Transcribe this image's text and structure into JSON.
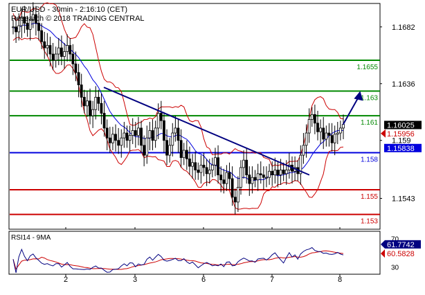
{
  "header": {
    "line1": "EUR/USD - 30min - 2:16:10 (CET)",
    "line2": "Research © 2018 TRADING CENTRAL"
  },
  "colors": {
    "candle": "#000000",
    "bollinger": "#cc0000",
    "moving_average": "#0000dd",
    "trendline": "#000080",
    "resistance": "#008800",
    "pivot": "#0000dd",
    "support": "#cc0000",
    "arrow": "#000080",
    "rsi": "#000080",
    "rsi_ma": "#cc0000",
    "last_price_bg": "#000000",
    "last_price_fg": "#ffffff",
    "prev_price_bg": "#cc0000",
    "ma_label_bg": "#0000dd"
  },
  "chart_data": [
    {
      "type": "candlestick",
      "title": "EUR/USD - 30min - 2:16:10 (CET)",
      "x_tick_labels": [
        "2",
        "3",
        "6",
        "7",
        "8"
      ],
      "y_tick_labels": [
        "1.1682",
        "1.1636",
        "1.159",
        "1.1543"
      ],
      "ylim": [
        1.1518,
        1.1701
      ],
      "grid": false,
      "level_lines": [
        {
          "value": 1.1655,
          "label": "1.1655",
          "kind": "resistance"
        },
        {
          "value": 1.163,
          "label": "1.163",
          "kind": "resistance"
        },
        {
          "value": 1.161,
          "label": "1.161",
          "kind": "resistance"
        },
        {
          "value": 1.158,
          "label": "1.158",
          "kind": "pivot"
        },
        {
          "value": 1.155,
          "label": "1.155",
          "kind": "support"
        },
        {
          "value": 1.153,
          "label": "1.153",
          "kind": "support"
        }
      ],
      "price_labels": [
        {
          "value": 1.16025,
          "label": "1.16025",
          "kind": "last"
        },
        {
          "value": 1.15956,
          "label": "1.15956",
          "kind": "previous"
        },
        {
          "value": 1.15838,
          "label": "1.15838",
          "kind": "moving_average"
        }
      ],
      "closes": [
        1.1682,
        1.1678,
        1.1683,
        1.169,
        1.1685,
        1.168,
        1.1688,
        1.1692,
        1.1685,
        1.1679,
        1.167,
        1.1665,
        1.1667,
        1.166,
        1.1655,
        1.166,
        1.1665,
        1.1658,
        1.1662,
        1.1667,
        1.166,
        1.1652,
        1.1645,
        1.1635,
        1.1625,
        1.1618,
        1.1622,
        1.161,
        1.1615,
        1.1625,
        1.162,
        1.1612,
        1.16,
        1.1592,
        1.1588,
        1.1595,
        1.159,
        1.1586,
        1.1592,
        1.1596,
        1.159,
        1.1594,
        1.1598,
        1.1594,
        1.16,
        1.1586,
        1.1578,
        1.1592,
        1.1598,
        1.159,
        1.16,
        1.1612,
        1.1606,
        1.159,
        1.1578,
        1.1586,
        1.1596,
        1.16,
        1.159,
        1.1576,
        1.1582,
        1.1575,
        1.1569,
        1.1572,
        1.1566,
        1.1564,
        1.157,
        1.1568,
        1.1563,
        1.1566,
        1.157,
        1.1576,
        1.1562,
        1.1558,
        1.1555,
        1.1564,
        1.1559,
        1.1544,
        1.154,
        1.1552,
        1.1568,
        1.1574,
        1.1562,
        1.1555,
        1.156,
        1.1558,
        1.1563,
        1.1562,
        1.156,
        1.156,
        1.1565,
        1.1562,
        1.1566,
        1.1562,
        1.1566,
        1.1563,
        1.1566,
        1.157,
        1.1565,
        1.1568,
        1.1563,
        1.1578,
        1.1586,
        1.1596,
        1.1607,
        1.1611,
        1.1604,
        1.1597,
        1.16,
        1.1591,
        1.1596,
        1.1594,
        1.1588,
        1.1595,
        1.1596,
        1.16,
        1.1603
      ],
      "trendline": {
        "from": [
          2.55,
          1.1633
        ],
        "to": [
          7.55,
          1.1562
        ]
      },
      "projection_arrow": {
        "from": [
          8.1,
          1.1603
        ],
        "to": [
          8.3,
          1.163
        ]
      }
    },
    {
      "type": "line",
      "title": "RSI14 - 9MA",
      "y_tick_labels": [
        "70",
        "30"
      ],
      "ylim": [
        20,
        80
      ],
      "value_labels": [
        {
          "value": 61.7742,
          "label": "61.7742",
          "kind": "rsi"
        },
        {
          "value": 60.5828,
          "label": "60.5828",
          "kind": "ma"
        }
      ]
    }
  ]
}
